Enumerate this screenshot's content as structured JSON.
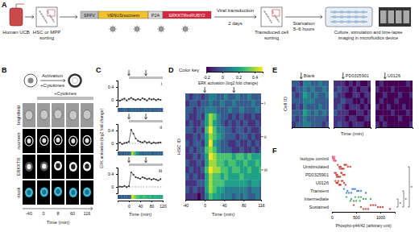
{
  "panel_labels": [
    "A",
    "B",
    "C",
    "D",
    "E",
    "F"
  ],
  "workflow": {
    "source": "Human UCB",
    "sorting": [
      "HSC or MPP",
      "sorting"
    ],
    "construct": [
      {
        "label": "SFFV",
        "color": "#bdbdbd"
      },
      {
        "label": "VENUSnucmem",
        "color": "#f2c12e"
      },
      {
        "label": "P2A",
        "color": "#d9d9d9"
      },
      {
        "label": "ERKKTRmRUBY2",
        "color": "#d7263d"
      }
    ],
    "transduction": [
      "Viral transduction",
      "2 days"
    ],
    "transduced_sorting": [
      "Transduced cell",
      "sorting"
    ],
    "starvation": [
      "Starvation",
      "5–6 hours"
    ],
    "imaging": [
      "Culture, stimulation and time-lapse",
      "imaging in microfluidics device"
    ]
  },
  "imaging": {
    "schematic": [
      "Activation",
      "+Cytokines"
    ],
    "stimulus_label": "+Cytokines",
    "stimulus_time": 0,
    "row_labels": [
      "brightfield",
      "nucmem",
      "ERKKTR",
      "mask"
    ],
    "times": [
      -40,
      0,
      8,
      60,
      116
    ],
    "x_label": "Time (min)"
  },
  "chart_data": [
    {
      "type": "line",
      "color": "#333333",
      "marker": "circle",
      "x": [
        -40,
        -32,
        -24,
        -16,
        -8,
        0,
        8,
        16,
        24,
        32,
        40,
        48,
        56,
        64,
        72,
        80,
        88,
        96,
        104,
        112
      ],
      "series": [
        {
          "name": "i",
          "values": [
            0.02,
            -0.03,
            0.01,
            0.04,
            -0.02,
            0.03,
            0.06,
            0.02,
            -0.01,
            0.03,
            0.0,
            0.05,
            0.02,
            -0.02,
            0.04,
            0.01,
            0.03,
            -0.01,
            0.02,
            0.0
          ]
        },
        {
          "name": "ii",
          "values": [
            0.0,
            0.03,
            -0.02,
            0.01,
            0.02,
            0.05,
            0.42,
            0.3,
            0.15,
            0.08,
            0.05,
            0.03,
            0.06,
            0.02,
            0.04,
            0.0,
            0.03,
            0.01,
            0.02,
            0.03
          ]
        },
        {
          "name": "iii",
          "values": [
            -0.02,
            0.01,
            0.0,
            0.03,
            -0.01,
            0.02,
            0.45,
            0.38,
            0.3,
            0.28,
            0.25,
            0.3,
            0.27,
            0.24,
            0.26,
            0.22,
            0.25,
            0.23,
            0.2,
            0.24
          ]
        }
      ],
      "xlim": [
        -40,
        120
      ],
      "xticks": [
        0,
        40,
        80,
        120
      ],
      "ylim": [
        -0.2,
        0.6
      ],
      "yticks": [
        0,
        0.4
      ],
      "x_label": "Time (min)",
      "y_label": "ERK activation (log2 fold change)",
      "reference_line": 0,
      "arrows": [
        0,
        60
      ],
      "stimulus": [
        0,
        120
      ]
    },
    {
      "type": "heatmap",
      "x": [
        -40,
        -32,
        -24,
        -16,
        -8,
        0,
        8,
        16,
        24,
        32,
        40,
        48,
        56,
        64,
        72,
        80,
        88,
        96,
        104,
        112
      ],
      "xlim": [
        -40,
        116
      ],
      "xticks": [
        -40,
        0,
        40,
        80,
        116
      ],
      "x_label": "Time (min)",
      "y_label": "HSC ID",
      "arrows": [
        0,
        60
      ],
      "row_markers": [
        {
          "label": "i",
          "row": 1
        },
        {
          "label": "ii",
          "row": 6
        },
        {
          "label": "iii",
          "row": 11
        }
      ],
      "colorbar": {
        "title": "Color key",
        "label": "ERK activation (log2 fold change)",
        "range": [
          -0.2,
          0.5
        ],
        "ticks": [
          -0.2,
          0,
          0.2,
          0.4
        ]
      },
      "cells": [
        [
          0,
          -0.1,
          0,
          0,
          -0.1,
          0,
          0.1,
          0.1,
          0,
          0,
          0.1,
          0,
          0,
          0.1,
          0,
          0,
          0.1,
          0,
          0,
          0
        ],
        [
          -0.1,
          0,
          0,
          -0.1,
          0,
          0,
          0.1,
          0,
          0,
          0.1,
          0,
          0,
          0.1,
          0,
          0,
          0,
          0,
          0.1,
          0,
          0
        ],
        [
          0,
          0,
          -0.1,
          0,
          0,
          0.1,
          0.1,
          0.1,
          0,
          0,
          0,
          0.1,
          0,
          0,
          0.1,
          0,
          0,
          0,
          0.1,
          0
        ],
        [
          0,
          -0.1,
          -0.1,
          0,
          -0.1,
          0.2,
          0.4,
          0.3,
          0.1,
          0,
          0,
          -0.1,
          0,
          -0.1,
          0,
          -0.1,
          -0.1,
          0,
          -0.1,
          -0.1
        ],
        [
          -0.1,
          0,
          -0.1,
          -0.1,
          0,
          0.2,
          0.4,
          0.2,
          0.1,
          0,
          -0.1,
          0,
          -0.1,
          0,
          -0.1,
          0,
          -0.1,
          -0.1,
          0,
          -0.1
        ],
        [
          0,
          0,
          -0.1,
          0,
          -0.1,
          0.3,
          0.5,
          0.3,
          0.1,
          0.1,
          0,
          0,
          -0.1,
          0,
          0,
          -0.1,
          0,
          -0.1,
          -0.1,
          0
        ],
        [
          -0.1,
          -0.1,
          0,
          -0.1,
          0,
          0.2,
          0.4,
          0.3,
          0.2,
          0.1,
          0,
          0,
          0,
          -0.1,
          0,
          0,
          -0.1,
          0,
          -0.1,
          -0.1
        ],
        [
          0,
          -0.1,
          0,
          0,
          -0.1,
          0.2,
          0.5,
          0.2,
          0.1,
          0,
          0,
          -0.1,
          -0.1,
          0,
          -0.1,
          -0.1,
          0,
          -0.1,
          0,
          -0.1
        ],
        [
          -0.1,
          0,
          -0.1,
          0,
          0,
          0.3,
          0.4,
          0.3,
          0.1,
          0,
          0,
          0,
          -0.1,
          -0.1,
          0,
          -0.1,
          -0.1,
          0,
          -0.1,
          0
        ],
        [
          -0.1,
          -0.1,
          0,
          -0.1,
          0,
          0.2,
          0.5,
          0.4,
          0.3,
          0.3,
          0.3,
          0.3,
          0.2,
          0.3,
          0.3,
          0.2,
          0.3,
          0.2,
          0.2,
          0.2
        ],
        [
          0,
          -0.1,
          -0.1,
          0,
          -0.1,
          0.2,
          0.4,
          0.4,
          0.3,
          0.3,
          0.2,
          0.3,
          0.3,
          0.2,
          0.2,
          0.3,
          0.2,
          0.2,
          0.3,
          0.2
        ],
        [
          -0.1,
          0,
          -0.1,
          -0.1,
          0,
          0.3,
          0.5,
          0.4,
          0.4,
          0.3,
          0.3,
          0.2,
          0.3,
          0.3,
          0.2,
          0.2,
          0.3,
          0.2,
          0.2,
          0.3
        ],
        [
          0,
          -0.1,
          0,
          -0.1,
          -0.1,
          0.2,
          0.4,
          0.3,
          0.3,
          0.2,
          0.3,
          0.2,
          0.2,
          0.2,
          0.3,
          0.2,
          0.2,
          0.2,
          0.2,
          0.2
        ],
        [
          -0.1,
          -0.1,
          -0.1,
          0,
          0,
          0.2,
          0.4,
          0.3,
          0.3,
          0.3,
          0.2,
          0.2,
          0.2,
          0.2,
          0.2,
          0.2,
          0.1,
          0.2,
          0.2,
          0.1
        ],
        [
          0,
          -0.1,
          0,
          -0.1,
          -0.1,
          0.2,
          0.4,
          0.3,
          0.2,
          0.2,
          0.1,
          0.1,
          0.1,
          0.1,
          0.1,
          0.1,
          0,
          0.1,
          0.1,
          0
        ],
        [
          -0.1,
          -0.1,
          -0.1,
          -0.2,
          -0.1,
          0.1,
          0.3,
          0.2,
          0.2,
          0.1,
          0.1,
          0.1,
          0,
          0.1,
          0,
          0.1,
          0,
          0,
          0.1,
          0
        ]
      ]
    },
    {
      "type": "heatmap",
      "title": "Blank",
      "y_label": "Cell ID",
      "tick_labels": false,
      "x": [
        -40,
        -24,
        -8,
        8,
        24,
        40,
        56,
        72,
        88,
        104
      ],
      "xlim": [
        -40,
        116
      ],
      "arrows": [
        0
      ],
      "cells": [
        [
          0,
          0,
          -0.1,
          0.1,
          0.1,
          0,
          0,
          0.1,
          0,
          0
        ],
        [
          -0.1,
          0,
          0,
          0.1,
          0,
          0.1,
          0,
          0,
          0.1,
          0
        ],
        [
          0,
          -0.1,
          0,
          0.2,
          0.1,
          0,
          0.1,
          0,
          0,
          0.1
        ],
        [
          0,
          0,
          0,
          0.1,
          0.1,
          0.1,
          0,
          0,
          0,
          0
        ],
        [
          -0.1,
          0,
          -0.1,
          0.1,
          0,
          0,
          0,
          0.1,
          0,
          0
        ],
        [
          0,
          0,
          0,
          0.2,
          0.1,
          0,
          0.1,
          0,
          0.1,
          0
        ],
        [
          0,
          -0.1,
          0,
          0.1,
          0,
          0,
          0,
          0,
          0,
          -0.1
        ],
        [
          -0.1,
          0,
          0,
          0.1,
          0.1,
          0,
          0,
          0,
          -0.1,
          0
        ]
      ]
    },
    {
      "type": "heatmap",
      "title": "PD0325901",
      "x_label": "Time (min)",
      "tick_labels": false,
      "x": [
        -40,
        -24,
        -8,
        8,
        24,
        40,
        56,
        72,
        88,
        104
      ],
      "xlim": [
        -40,
        116
      ],
      "arrows": [
        0
      ],
      "cells": [
        [
          -0.1,
          -0.1,
          -0.1,
          -0.2,
          -0.1,
          -0.2,
          -0.1,
          -0.2,
          -0.2,
          -0.1
        ],
        [
          -0.1,
          0,
          -0.1,
          -0.1,
          -0.2,
          -0.1,
          -0.2,
          -0.1,
          -0.1,
          -0.2
        ],
        [
          0,
          -0.1,
          -0.1,
          -0.2,
          -0.2,
          -0.1,
          -0.1,
          -0.2,
          -0.1,
          -0.1
        ],
        [
          -0.1,
          -0.1,
          0,
          -0.1,
          -0.1,
          -0.2,
          -0.2,
          -0.1,
          -0.2,
          -0.1
        ],
        [
          -0.1,
          0,
          -0.1,
          -0.2,
          -0.1,
          -0.1,
          -0.1,
          -0.2,
          -0.1,
          -0.2
        ],
        [
          0,
          -0.1,
          -0.1,
          -0.1,
          -0.2,
          -0.2,
          -0.1,
          -0.1,
          -0.2,
          -0.1
        ],
        [
          -0.1,
          -0.1,
          -0.1,
          -0.2,
          -0.1,
          -0.1,
          -0.2,
          -0.2,
          -0.1,
          -0.1
        ],
        [
          -0.1,
          0,
          -0.1,
          -0.1,
          -0.2,
          -0.1,
          -0.1,
          -0.1,
          -0.2,
          -0.2
        ]
      ]
    },
    {
      "type": "heatmap",
      "title": "U0126",
      "tick_labels": false,
      "x": [
        -40,
        -24,
        -8,
        8,
        24,
        40,
        56,
        72,
        88,
        104
      ],
      "xlim": [
        -40,
        116
      ],
      "arrows": [
        0
      ],
      "cells": [
        [
          -0.2,
          -0.1,
          -0.2,
          -0.2,
          -0.2,
          -0.2,
          -0.2,
          -0.2,
          -0.1,
          -0.2
        ],
        [
          -0.1,
          -0.2,
          -0.2,
          -0.2,
          -0.1,
          -0.2,
          -0.2,
          -0.2,
          -0.2,
          -0.2
        ],
        [
          -0.2,
          -0.2,
          -0.1,
          -0.2,
          -0.2,
          -0.2,
          -0.1,
          -0.2,
          -0.2,
          -0.1
        ],
        [
          -0.2,
          -0.1,
          -0.2,
          -0.2,
          -0.2,
          -0.1,
          -0.2,
          -0.2,
          -0.2,
          -0.2
        ],
        [
          -0.1,
          -0.2,
          -0.2,
          -0.1,
          -0.2,
          -0.2,
          -0.2,
          -0.1,
          -0.2,
          -0.2
        ],
        [
          -0.2,
          -0.2,
          -0.2,
          -0.2,
          -0.1,
          -0.2,
          -0.2,
          -0.2,
          -0.1,
          -0.2
        ],
        [
          -0.2,
          -0.1,
          -0.2,
          -0.2,
          -0.2,
          -0.2,
          -0.1,
          -0.2,
          -0.2,
          -0.2
        ],
        [
          -0.1,
          -0.2,
          -0.1,
          -0.2,
          -0.2,
          -0.2,
          -0.2,
          -0.2,
          -0.2,
          -0.1
        ]
      ]
    },
    {
      "type": "strip",
      "orientation": "horizontal",
      "categories": [
        "Isotype control",
        "Unstimulated",
        "PD0325901",
        "U0126",
        "Transient",
        "Intermediate",
        "Sustained"
      ],
      "colors": [
        "#e0607e",
        "#c0392b",
        "#c0392b",
        "#c0392b",
        "#3a7dc9",
        "#3aa655",
        "#c0392b"
      ],
      "values": [
        [
          10,
          25,
          40,
          55,
          30,
          70,
          15,
          45,
          60,
          20,
          35,
          80
        ],
        [
          120,
          180,
          240,
          300,
          150,
          210,
          270,
          330,
          200,
          260,
          380,
          160
        ],
        [
          60,
          90,
          140,
          200,
          110,
          170,
          80,
          230,
          130,
          190,
          260,
          100
        ],
        [
          70,
          110,
          150,
          220,
          90,
          180,
          130,
          250,
          160,
          200,
          120,
          280
        ],
        [
          250,
          320,
          400,
          480,
          550,
          300,
          420,
          600,
          350,
          450,
          520,
          700
        ],
        [
          300,
          400,
          500,
          600,
          700,
          450,
          550,
          650,
          380,
          480,
          800,
          580
        ],
        [
          450,
          600,
          750,
          900,
          1050,
          700,
          850,
          1000,
          650,
          800,
          950,
          1200
        ]
      ],
      "xlim": [
        0,
        1300
      ],
      "xticks": [
        0,
        500,
        1000
      ],
      "x_label": "Phospho-p44/42 (arbitrary unit)",
      "brackets": [
        {
          "from": 5,
          "to": 6,
          "label": "*"
        },
        {
          "from": 4,
          "to": 6,
          "label": "*"
        },
        {
          "from": 1,
          "to": 6,
          "label": "*"
        }
      ]
    }
  ]
}
